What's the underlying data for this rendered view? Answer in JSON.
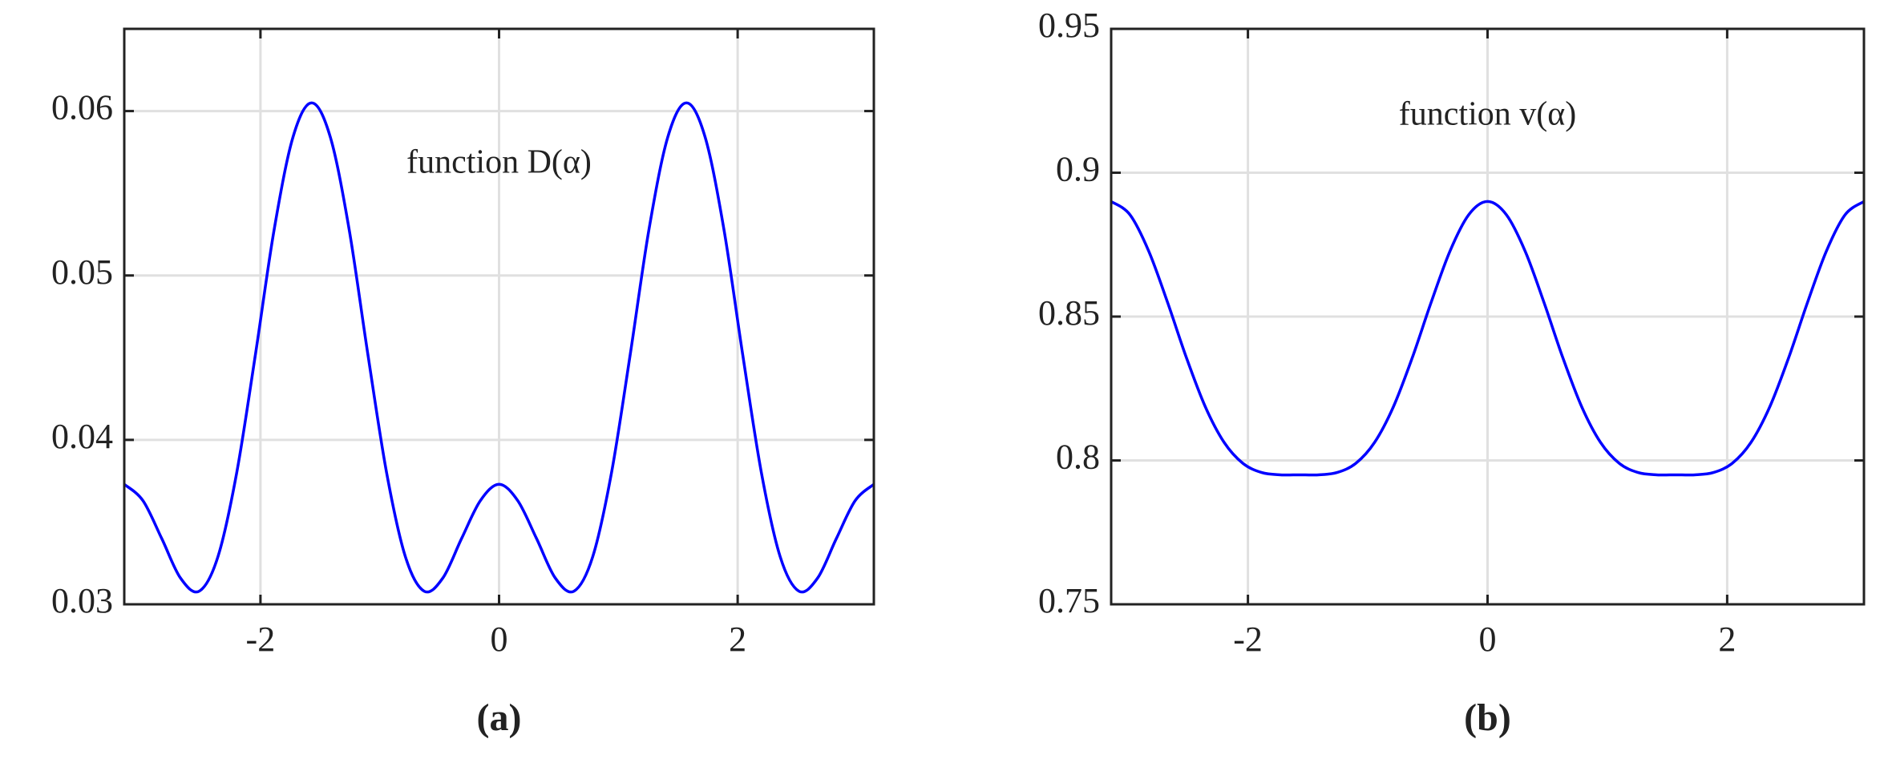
{
  "chart_data": [
    {
      "type": "line",
      "annotation": "function D(α)",
      "caption": "(a)",
      "color": "#0000ff",
      "grid": true,
      "xlim": [
        -3.1416,
        3.1416
      ],
      "xticks": [
        -2,
        0,
        2
      ],
      "ylim": [
        0.03,
        0.065
      ],
      "yticks": [
        0.03,
        0.04,
        0.05,
        0.06
      ],
      "x": [
        -3.1416,
        -2.9845,
        -2.8274,
        -2.6704,
        -2.5133,
        -2.3562,
        -2.1991,
        -2.042,
        -1.885,
        -1.7279,
        -1.5708,
        -1.4137,
        -1.2566,
        -1.0996,
        -0.9425,
        -0.7854,
        -0.6283,
        -0.4712,
        -0.3142,
        -0.1571,
        0,
        0.1571,
        0.3142,
        0.4712,
        0.6283,
        0.7854,
        0.9425,
        1.0996,
        1.2566,
        1.4137,
        1.5708,
        1.7279,
        1.885,
        2.042,
        2.1991,
        2.3562,
        2.5133,
        2.6704,
        2.8274,
        2.9845,
        3.1416
      ],
      "values": [
        0.0373,
        0.0363,
        0.034,
        0.0316,
        0.0308,
        0.0329,
        0.038,
        0.0452,
        0.0528,
        0.0584,
        0.0605,
        0.0584,
        0.0528,
        0.0452,
        0.038,
        0.0329,
        0.0308,
        0.0316,
        0.034,
        0.0363,
        0.0373,
        0.0363,
        0.034,
        0.0316,
        0.0308,
        0.0329,
        0.038,
        0.0452,
        0.0528,
        0.0584,
        0.0605,
        0.0584,
        0.0528,
        0.0452,
        0.038,
        0.0329,
        0.0308,
        0.0316,
        0.034,
        0.0363,
        0.0373
      ]
    },
    {
      "type": "line",
      "annotation": "function v(α)",
      "caption": "(b)",
      "color": "#0000ff",
      "grid": true,
      "xlim": [
        -3.1416,
        3.1416
      ],
      "xticks": [
        -2,
        0,
        2
      ],
      "ylim": [
        0.75,
        0.95
      ],
      "yticks": [
        0.75,
        0.8,
        0.85,
        0.9,
        0.95
      ],
      "x": [
        -3.1416,
        -2.9845,
        -2.8274,
        -2.6704,
        -2.5133,
        -2.3562,
        -2.1991,
        -2.042,
        -1.885,
        -1.7279,
        -1.5708,
        -1.4137,
        -1.2566,
        -1.0996,
        -0.9425,
        -0.7854,
        -0.6283,
        -0.4712,
        -0.3142,
        -0.1571,
        0,
        0.1571,
        0.3142,
        0.4712,
        0.6283,
        0.7854,
        0.9425,
        1.0996,
        1.2566,
        1.4137,
        1.5708,
        1.7279,
        1.885,
        2.042,
        2.1991,
        2.3562,
        2.5133,
        2.6704,
        2.8274,
        2.9845,
        3.1416
      ],
      "values": [
        0.89,
        0.8854,
        0.8727,
        0.8549,
        0.8357,
        0.8187,
        0.8063,
        0.799,
        0.7958,
        0.795,
        0.795,
        0.795,
        0.7958,
        0.799,
        0.8063,
        0.8187,
        0.8357,
        0.8549,
        0.8727,
        0.8854,
        0.89,
        0.8854,
        0.8727,
        0.8549,
        0.8357,
        0.8187,
        0.8063,
        0.799,
        0.7958,
        0.795,
        0.795,
        0.795,
        0.7958,
        0.799,
        0.8063,
        0.8187,
        0.8357,
        0.8549,
        0.8727,
        0.8854,
        0.89
      ]
    }
  ]
}
